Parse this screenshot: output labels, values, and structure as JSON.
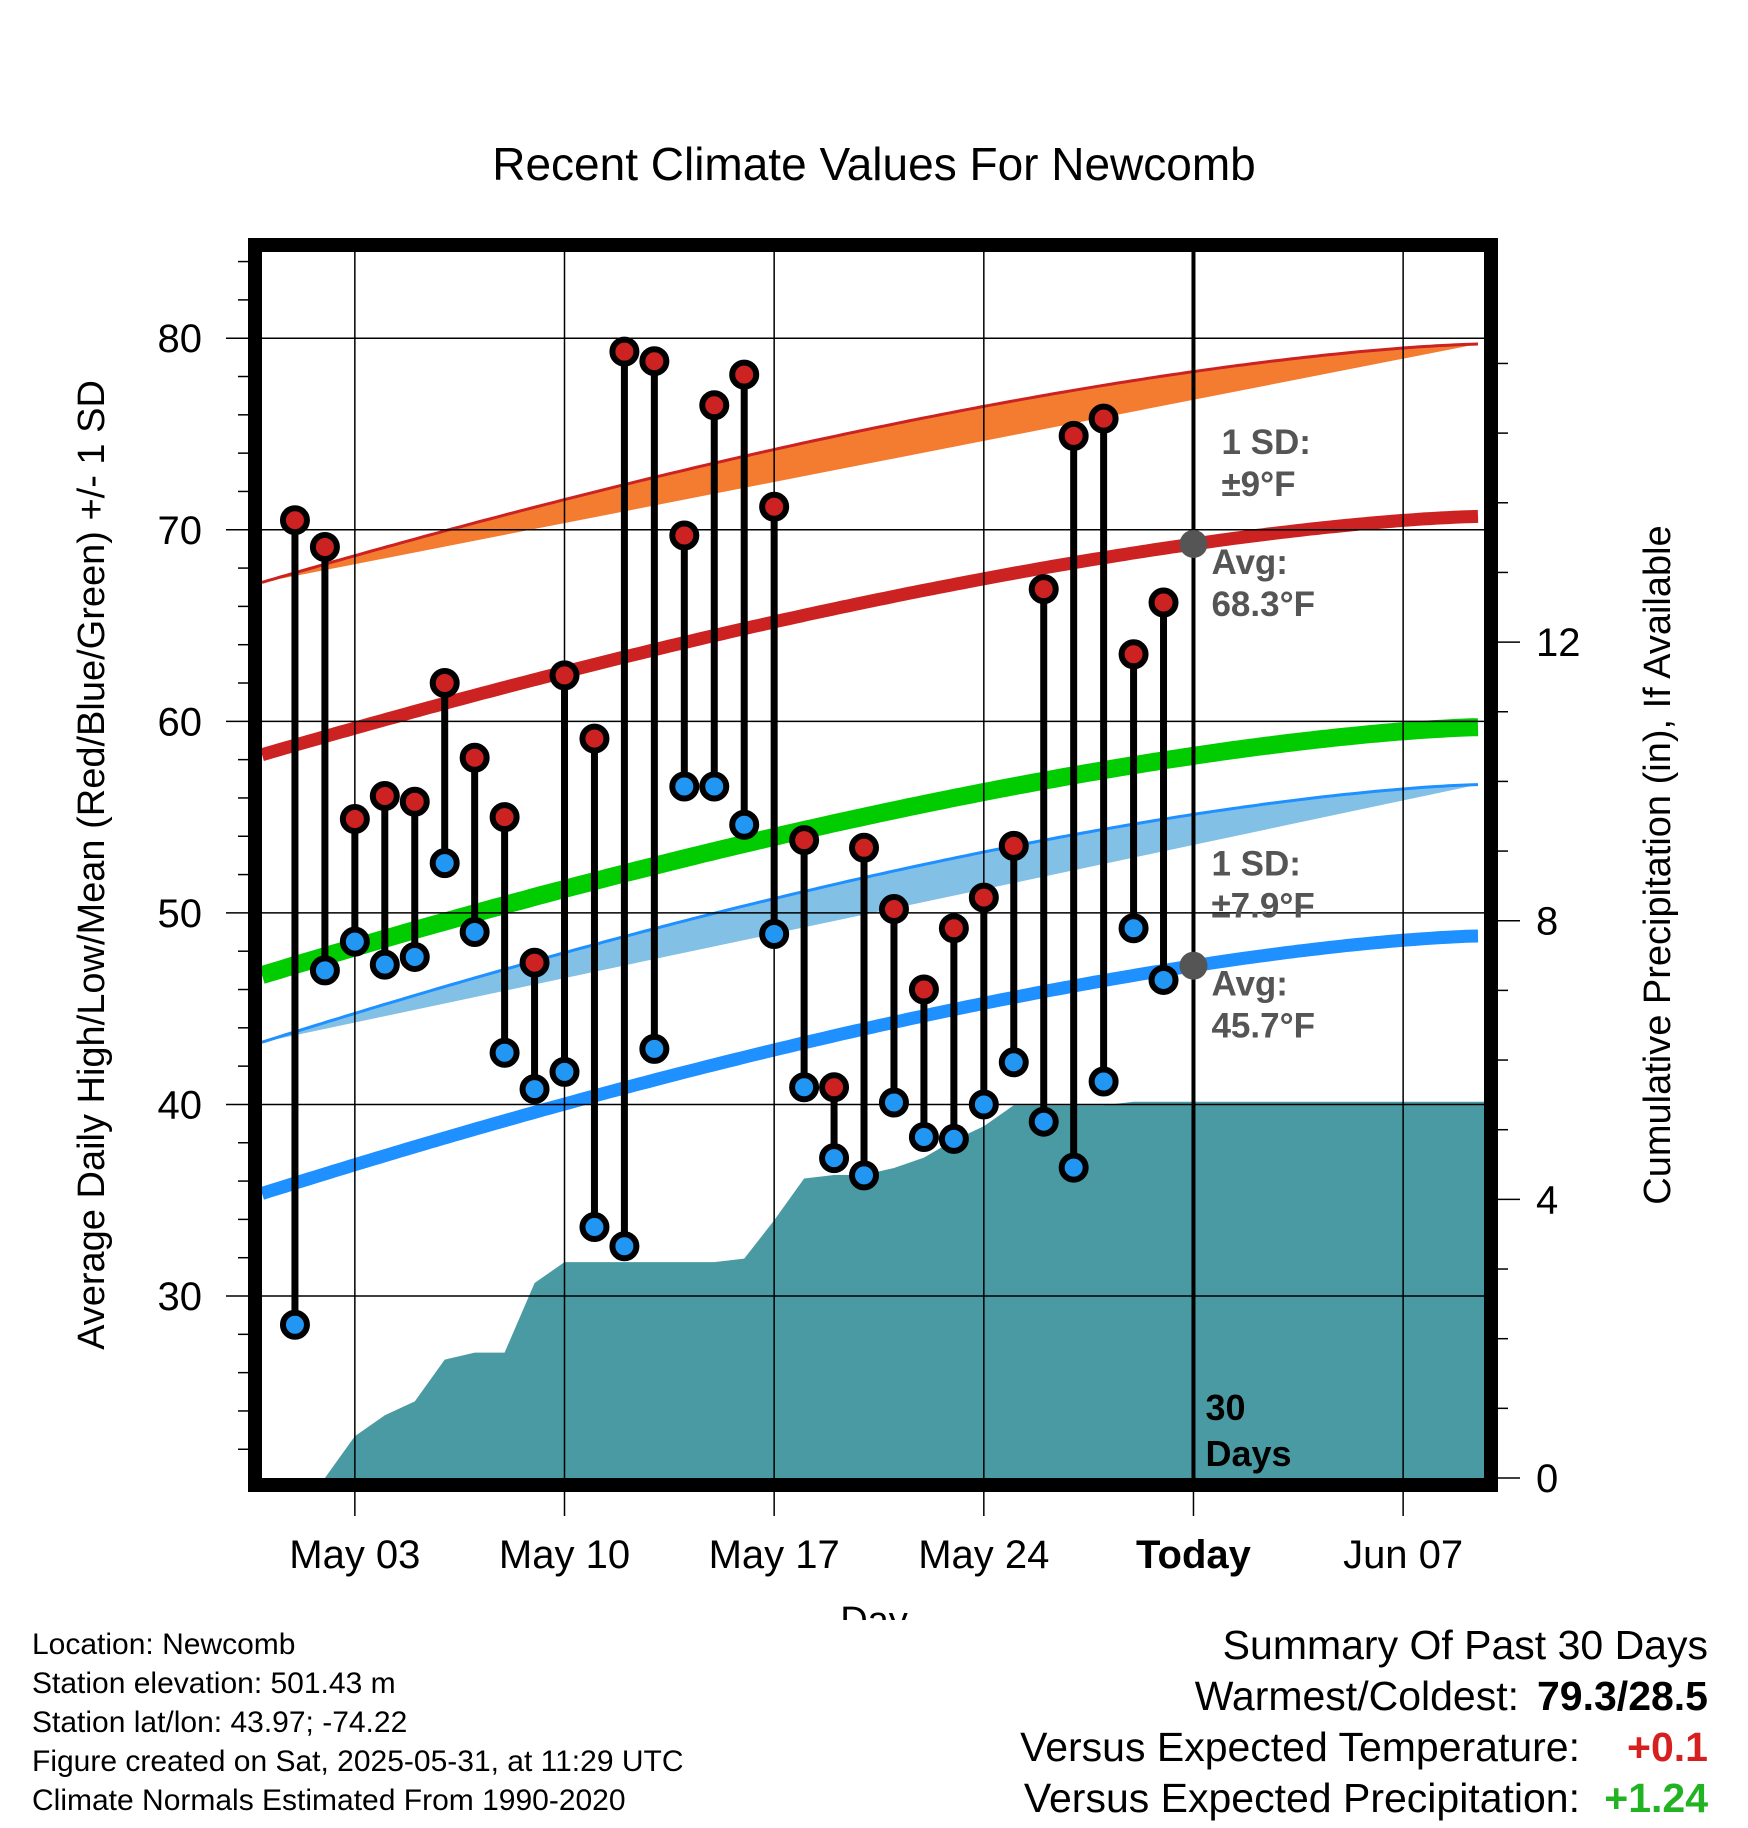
{
  "chart_data": {
    "type": "line",
    "title": "Recent Climate Values For Newcomb",
    "xlabel": "Day",
    "ylabel": "Average Daily High/Low/Mean (Red/Blue/Green) +/- 1 SD",
    "y2label": "Cumulative Precipitation (in), If Available",
    "ylim": [
      20.5,
      84.5
    ],
    "y2lim": [
      0,
      17.6
    ],
    "yticks": [
      30,
      40,
      50,
      60,
      70,
      80
    ],
    "y2ticks": [
      0,
      4,
      8,
      12
    ],
    "xticks": [
      {
        "day": 3,
        "label": "May 03"
      },
      {
        "day": 10,
        "label": "May 10"
      },
      {
        "day": 17,
        "label": "May 17"
      },
      {
        "day": 24,
        "label": "May 24"
      },
      {
        "day": 31,
        "label": "Today"
      },
      {
        "day": 38,
        "label": "Jun 07"
      }
    ],
    "xlim": [
      -0.1,
      40.7
    ],
    "grid": true,
    "daily_high": [
      70.5,
      69.1,
      54.9,
      56.1,
      55.8,
      62.0,
      58.1,
      55.0,
      47.4,
      62.4,
      59.1,
      79.3,
      78.8,
      69.7,
      76.5,
      78.1,
      71.2,
      53.8,
      40.9,
      53.4,
      50.2,
      46.0,
      49.2,
      50.8,
      53.5,
      66.9,
      74.9,
      75.8,
      63.5,
      66.2
    ],
    "daily_low": [
      28.5,
      47.0,
      48.5,
      47.3,
      47.7,
      52.6,
      49.0,
      42.7,
      40.8,
      41.7,
      33.6,
      32.6,
      42.9,
      56.6,
      56.6,
      54.6,
      48.9,
      40.9,
      37.2,
      36.3,
      40.1,
      38.3,
      38.2,
      40.0,
      42.2,
      39.1,
      36.7,
      41.2,
      49.2,
      46.5
    ],
    "normal_high": {
      "start": 58.3,
      "end": 70.7
    },
    "normal_high_sd": 9,
    "normal_low": {
      "start": 35.4,
      "end": 48.8
    },
    "normal_low_sd": 7.9,
    "normal_mean": {
      "start": 46.8,
      "end": 59.7
    },
    "precip_cumulative": {
      "days": [
        1,
        2,
        3,
        4,
        5,
        6,
        7,
        8,
        9,
        10,
        11,
        12,
        13,
        14,
        15,
        16,
        17,
        18,
        19,
        20,
        21,
        22,
        23,
        24,
        25,
        26,
        27,
        28,
        29,
        30,
        31,
        40.7
      ],
      "values": [
        0,
        0,
        0.6,
        0.9,
        1.1,
        1.7,
        1.8,
        1.8,
        2.8,
        3.1,
        3.1,
        3.1,
        3.1,
        3.1,
        3.1,
        3.15,
        3.7,
        4.3,
        4.35,
        4.35,
        4.45,
        4.6,
        4.85,
        5.05,
        5.35,
        5.35,
        5.35,
        5.35,
        5.4,
        5.4,
        5.4,
        5.4
      ]
    },
    "today_day": 31,
    "colors": {
      "high_band": "#f47c30",
      "high_line": "#cc2222",
      "low_band": "#82c0e6",
      "low_line": "#1e90ff",
      "mean_line": "#00cc00",
      "precip": "#4a9aa3",
      "high_dot": "#cc2222",
      "low_dot": "#2196f3"
    },
    "annotations": {
      "high_sd_title": "1 SD:",
      "high_sd_value": "±9°F",
      "high_avg_title": "Avg:",
      "high_avg_value": "68.3°F",
      "low_sd_title": "1 SD:",
      "low_sd_value": "±7.9°F",
      "low_avg_title": "Avg:",
      "low_avg_value": "45.7°F",
      "days_count": "30",
      "days_label": "Days"
    }
  },
  "footer": {
    "location": "Location: Newcomb",
    "elevation": "Station elevation: 501.43 m",
    "latlon": "Station lat/lon: 43.97; -74.22",
    "created": "Figure created on Sat, 2025-05-31, at 11:29 UTC",
    "normals": "Climate Normals Estimated From 1990-2020"
  },
  "summary": {
    "title": "Summary Of Past 30 Days",
    "warmest_label": "Warmest/Coldest:",
    "warmest_value": "79.3/28.5",
    "temp_label": "Versus Expected Temperature:",
    "temp_value": "+0.1",
    "precip_label": "Versus Expected Precipitation:",
    "precip_value": "+1.24"
  }
}
